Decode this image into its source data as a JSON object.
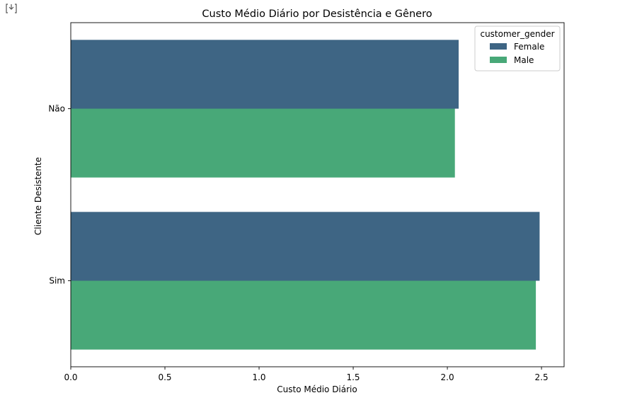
{
  "notebook": {
    "output_icon": "output-toggle-icon"
  },
  "chart_data": {
    "type": "bar",
    "orientation": "horizontal",
    "title": "Custo Médio Diário por Desistência e Gênero",
    "xlabel": "Custo Médio Diário",
    "ylabel": "Cliente Desistente",
    "categories": [
      "Não",
      "Sim"
    ],
    "series": [
      {
        "name": "Female",
        "values": [
          2.06,
          2.49
        ],
        "color": "#3e6584"
      },
      {
        "name": "Male",
        "values": [
          2.04,
          2.47
        ],
        "color": "#48a878"
      }
    ],
    "xlim": [
      0,
      2.62
    ],
    "xticks": [
      "0.0",
      "0.5",
      "1.0",
      "1.5",
      "2.0",
      "2.5"
    ],
    "grid": false,
    "legend": {
      "title": "customer_gender",
      "placement": "top-right"
    }
  }
}
